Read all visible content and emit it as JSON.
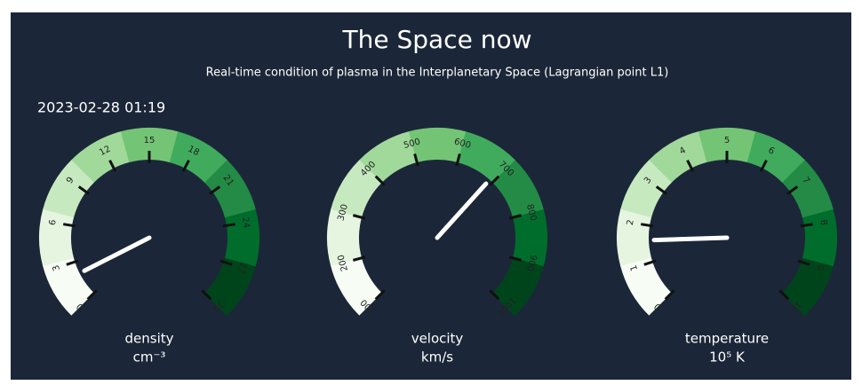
{
  "title": "The Space now",
  "subtitle": "Real-time condition of plasma in the Interplanetary Space (Lagrangian point L1)",
  "timestamp": "2023-02-28 01:19",
  "chart_data": [
    {
      "type": "gauge",
      "label": "density",
      "unit": "cm⁻³",
      "value": 2,
      "ylim": [
        0,
        30
      ],
      "yticks": [
        0,
        3,
        6,
        9,
        12,
        15,
        18,
        21,
        24,
        27,
        30
      ],
      "colors": [
        "#f7fcf5",
        "#e5f5e0",
        "#c7e9c0",
        "#a1d99b",
        "#74c476",
        "#41ab5d",
        "#238b45",
        "#006d2c",
        "#00441b"
      ],
      "needle_color": "#ffffff"
    },
    {
      "type": "gauge",
      "label": "velocity",
      "unit": "km/s",
      "value": 690,
      "ylim": [
        100,
        1000
      ],
      "yticks": [
        100,
        200,
        300,
        400,
        500,
        600,
        700,
        800,
        900,
        1000
      ],
      "colors": [
        "#f7fcf5",
        "#e5f5e0",
        "#c7e9c0",
        "#a1d99b",
        "#74c476",
        "#41ab5d",
        "#238b45",
        "#006d2c",
        "#00441b"
      ],
      "needle_color": "#ffffff"
    },
    {
      "type": "gauge",
      "label": "temperature",
      "unit": "10⁵ K",
      "value": 1.6,
      "ylim": [
        0,
        10
      ],
      "yticks": [
        0,
        1,
        2,
        3,
        4,
        5,
        6,
        7,
        8,
        9,
        10
      ],
      "colors": [
        "#f7fcf5",
        "#e5f5e0",
        "#c7e9c0",
        "#a1d99b",
        "#74c476",
        "#41ab5d",
        "#238b45",
        "#006d2c",
        "#00441b"
      ],
      "needle_color": "#ffffff"
    }
  ]
}
